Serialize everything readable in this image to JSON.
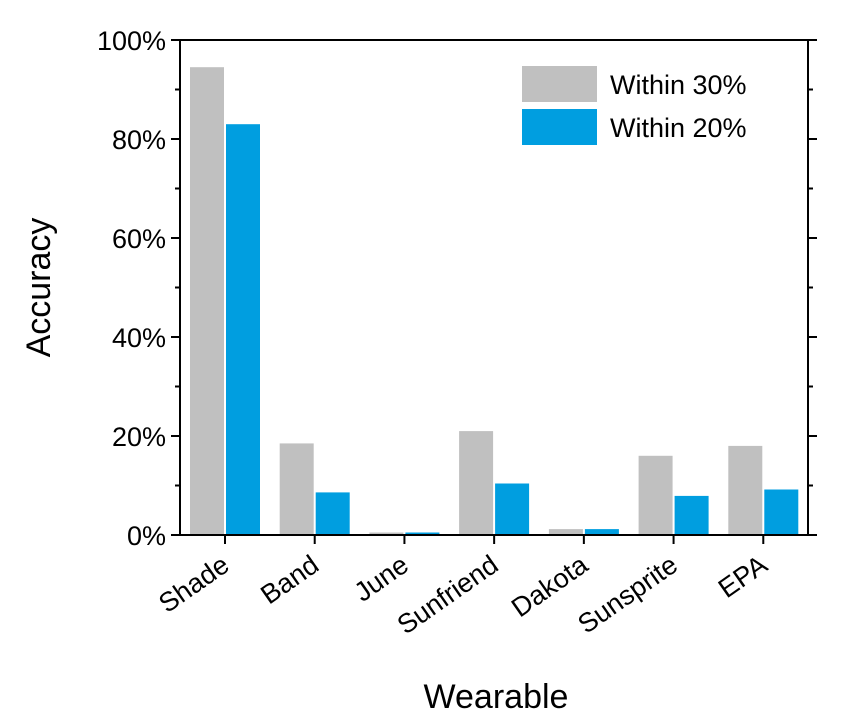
{
  "chart_data": {
    "type": "bar",
    "xlabel": "Wearable",
    "ylabel": "Accuracy",
    "ylim": [
      0,
      100
    ],
    "yticks": [
      0,
      20,
      40,
      60,
      80,
      100
    ],
    "ytick_labels": [
      "0%",
      "20%",
      "40%",
      "60%",
      "80%",
      "100%"
    ],
    "categories": [
      "Shade",
      "Band",
      "June",
      "Sunfriend",
      "Dakota",
      "Sunsprite",
      "EPA"
    ],
    "series": [
      {
        "name": "Within 30%",
        "color": "#c0c0c0",
        "values": [
          94.5,
          18.5,
          0.5,
          21,
          1.2,
          16,
          18
        ]
      },
      {
        "name": "Within 20%",
        "color": "#009ee0",
        "values": [
          83,
          8.6,
          0.5,
          10.4,
          1.2,
          7.9,
          9.2
        ]
      }
    ],
    "legend_position": "top-right",
    "grid": false
  }
}
